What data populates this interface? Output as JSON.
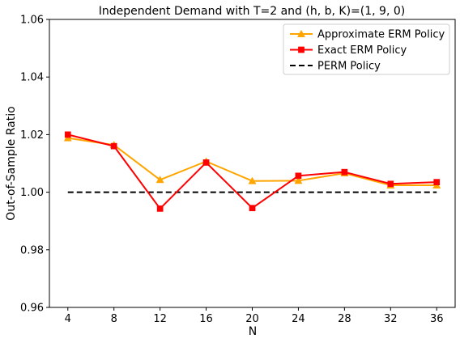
{
  "chart_data": {
    "type": "line",
    "title": "Independent Demand with T=2 and (h, b, K)=(1, 9, 0)",
    "xlabel": "N",
    "ylabel": "Out-of-Sample Ratio",
    "x": [
      4,
      8,
      12,
      16,
      20,
      24,
      28,
      32,
      36
    ],
    "xlim": [
      2.4,
      37.6
    ],
    "ylim": [
      0.96,
      1.06
    ],
    "xticks": [
      4,
      8,
      12,
      16,
      20,
      24,
      28,
      32,
      36
    ],
    "yticks": [
      0.96,
      0.98,
      1.0,
      1.02,
      1.04,
      1.06
    ],
    "ytick_labels": [
      "0.96",
      "0.98",
      "1.00",
      "1.02",
      "1.04",
      "1.06"
    ],
    "grid": false,
    "legend_position": "top-right",
    "series": [
      {
        "name": "Approximate ERM Policy",
        "color": "#FFA500",
        "marker": "triangle-up",
        "line_style": "solid",
        "values": [
          1.0188,
          1.0164,
          1.0043,
          1.0107,
          1.0039,
          1.004,
          1.0066,
          1.0024,
          1.0024
        ]
      },
      {
        "name": "Exact ERM Policy",
        "color": "#FF0000",
        "marker": "square",
        "line_style": "solid",
        "values": [
          1.02,
          1.016,
          0.9943,
          1.0103,
          0.9945,
          1.0057,
          1.007,
          1.0029,
          1.0035
        ]
      },
      {
        "name": "PERM Policy",
        "color": "#000000",
        "marker": "none",
        "line_style": "dashed",
        "values": [
          1.0,
          1.0,
          1.0,
          1.0,
          1.0,
          1.0,
          1.0,
          1.0,
          1.0
        ]
      }
    ]
  }
}
